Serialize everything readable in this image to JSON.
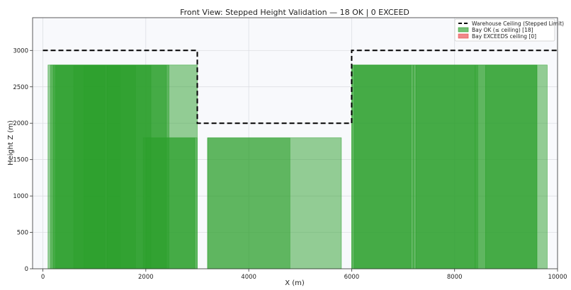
{
  "chart_data": {
    "type": "bar",
    "title": "Front View: Stepped Height Validation — 18 OK  |  0 EXCEED",
    "xlabel": "X (m)",
    "ylabel": "Height Z (m)",
    "xlim": [
      -200,
      10000
    ],
    "ylim": [
      0,
      3450
    ],
    "xticks": [
      0,
      2000,
      4000,
      6000,
      8000,
      10000
    ],
    "yticks": [
      0,
      500,
      1000,
      1500,
      2000,
      2500,
      3000
    ],
    "grid": true,
    "legend_position": "top-right",
    "ceiling": {
      "name": "Warehouse Ceiling (Stepped Limit)",
      "color": "#000000",
      "points": [
        [
          0,
          3000
        ],
        [
          3000,
          3000
        ],
        [
          3000,
          2000
        ],
        [
          6000,
          2000
        ],
        [
          6000,
          3000
        ],
        [
          10000,
          3000
        ]
      ]
    },
    "series": [
      {
        "name": "Bay OK (≤ ceiling)  [18]",
        "color": "#2ca02c",
        "bars": [
          {
            "x0": 100,
            "x1": 3000,
            "height": 2800
          },
          {
            "x0": 150,
            "x1": 1200,
            "height": 2800
          },
          {
            "x0": 200,
            "x1": 1500,
            "height": 2800
          },
          {
            "x0": 250,
            "x1": 1800,
            "height": 2800
          },
          {
            "x0": 600,
            "x1": 2400,
            "height": 2800
          },
          {
            "x0": 800,
            "x1": 2100,
            "height": 2800
          },
          {
            "x0": 1250,
            "x1": 2450,
            "height": 2800
          },
          {
            "x0": 1950,
            "x1": 3000,
            "height": 1800
          },
          {
            "x0": 2000,
            "x1": 2950,
            "height": 1800
          },
          {
            "x0": 3200,
            "x1": 5800,
            "height": 1800
          },
          {
            "x0": 3200,
            "x1": 4800,
            "height": 1800
          },
          {
            "x0": 6000,
            "x1": 7200,
            "height": 2800
          },
          {
            "x0": 6000,
            "x1": 8400,
            "height": 2800
          },
          {
            "x0": 7200,
            "x1": 9600,
            "height": 2800
          },
          {
            "x0": 7250,
            "x1": 8450,
            "height": 2800
          },
          {
            "x0": 8400,
            "x1": 9800,
            "height": 2800
          },
          {
            "x0": 8600,
            "x1": 9600,
            "height": 2800
          },
          {
            "x0": 6050,
            "x1": 7150,
            "height": 2800
          }
        ]
      },
      {
        "name": "Bay EXCEEDS ceiling  [0]",
        "color": "#e8474a",
        "bars": []
      }
    ]
  }
}
